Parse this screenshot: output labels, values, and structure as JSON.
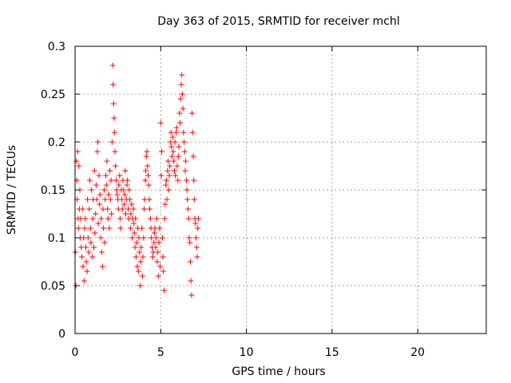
{
  "chart_data": {
    "type": "scatter",
    "title": "Day 363 of 2015, SRMTID for receiver mchl",
    "xlabel": "GPS time / hours",
    "ylabel": "SRMTID / TECUs",
    "xlim": [
      0,
      24
    ],
    "ylim": [
      0,
      0.3
    ],
    "xticks": [
      0,
      5,
      10,
      15,
      20
    ],
    "xtick_labels": [
      "0",
      "5",
      "10",
      "15",
      "20"
    ],
    "yticks": [
      0,
      0.05,
      0.1,
      0.15,
      0.2,
      0.25,
      0.3
    ],
    "ytick_labels": [
      "0",
      "0.05",
      "0.1",
      "0.15",
      "0.2",
      "0.25",
      "0.3"
    ],
    "grid": true,
    "marker": "+",
    "color": "#ff0000",
    "series": [
      {
        "name": "SRMTID",
        "points": [
          [
            0.02,
            0.085
          ],
          [
            0.05,
            0.05
          ],
          [
            0.08,
            0.18
          ],
          [
            0.1,
            0.16
          ],
          [
            0.12,
            0.14
          ],
          [
            0.15,
            0.19
          ],
          [
            0.18,
            0.12
          ],
          [
            0.2,
            0.11
          ],
          [
            0.22,
            0.175
          ],
          [
            0.25,
            0.13
          ],
          [
            0.28,
            0.15
          ],
          [
            0.3,
            0.1
          ],
          [
            0.33,
            0.12
          ],
          [
            0.36,
            0.09
          ],
          [
            0.4,
            0.08
          ],
          [
            0.43,
            0.13
          ],
          [
            0.46,
            0.07
          ],
          [
            0.5,
            0.1
          ],
          [
            0.53,
            0.055
          ],
          [
            0.56,
            0.11
          ],
          [
            0.6,
            0.12
          ],
          [
            0.63,
            0.09
          ],
          [
            0.66,
            0.075
          ],
          [
            0.7,
            0.065
          ],
          [
            0.73,
            0.14
          ],
          [
            0.76,
            0.1
          ],
          [
            0.8,
            0.085
          ],
          [
            0.83,
            0.13
          ],
          [
            0.86,
            0.16
          ],
          [
            0.9,
            0.11
          ],
          [
            0.93,
            0.095
          ],
          [
            0.96,
            0.15
          ],
          [
            1.0,
            0.08
          ],
          [
            1.03,
            0.12
          ],
          [
            1.06,
            0.14
          ],
          [
            1.1,
            0.09
          ],
          [
            1.13,
            0.17
          ],
          [
            1.16,
            0.105
          ],
          [
            1.2,
            0.125
          ],
          [
            1.23,
            0.155
          ],
          [
            1.26,
            0.14
          ],
          [
            1.3,
            0.19
          ],
          [
            1.33,
            0.2
          ],
          [
            1.36,
            0.115
          ],
          [
            1.4,
            0.165
          ],
          [
            1.43,
            0.135
          ],
          [
            1.46,
            0.145
          ],
          [
            1.5,
            0.1
          ],
          [
            1.53,
            0.12
          ],
          [
            1.56,
            0.085
          ],
          [
            1.6,
            0.07
          ],
          [
            1.63,
            0.13
          ],
          [
            1.66,
            0.11
          ],
          [
            1.7,
            0.15
          ],
          [
            1.73,
            0.095
          ],
          [
            1.76,
            0.14
          ],
          [
            1.8,
            0.165
          ],
          [
            1.83,
            0.155
          ],
          [
            1.86,
            0.18
          ],
          [
            1.9,
            0.13
          ],
          [
            1.93,
            0.12
          ],
          [
            1.96,
            0.145
          ],
          [
            2.0,
            0.11
          ],
          [
            2.03,
            0.17
          ],
          [
            2.06,
            0.14
          ],
          [
            2.1,
            0.16
          ],
          [
            2.13,
            0.125
          ],
          [
            2.16,
            0.2
          ],
          [
            2.2,
            0.28
          ],
          [
            2.22,
            0.26
          ],
          [
            2.25,
            0.24
          ],
          [
            2.28,
            0.225
          ],
          [
            2.3,
            0.21
          ],
          [
            2.33,
            0.19
          ],
          [
            2.36,
            0.175
          ],
          [
            2.4,
            0.16
          ],
          [
            2.43,
            0.15
          ],
          [
            2.46,
            0.145
          ],
          [
            2.5,
            0.14
          ],
          [
            2.53,
            0.13
          ],
          [
            2.56,
            0.155
          ],
          [
            2.6,
            0.165
          ],
          [
            2.63,
            0.12
          ],
          [
            2.66,
            0.11
          ],
          [
            2.7,
            0.15
          ],
          [
            2.73,
            0.14
          ],
          [
            2.76,
            0.13
          ],
          [
            2.8,
            0.16
          ],
          [
            2.83,
            0.15
          ],
          [
            2.86,
            0.135
          ],
          [
            2.9,
            0.145
          ],
          [
            2.93,
            0.17
          ],
          [
            2.96,
            0.125
          ],
          [
            3.0,
            0.14
          ],
          [
            3.03,
            0.155
          ],
          [
            3.06,
            0.16
          ],
          [
            3.1,
            0.13
          ],
          [
            3.13,
            0.12
          ],
          [
            3.16,
            0.15
          ],
          [
            3.2,
            0.14
          ],
          [
            3.23,
            0.11
          ],
          [
            3.26,
            0.125
          ],
          [
            3.3,
            0.135
          ],
          [
            3.33,
            0.1
          ],
          [
            3.36,
            0.12
          ],
          [
            3.4,
            0.13
          ],
          [
            3.43,
            0.115
          ],
          [
            3.46,
            0.105
          ],
          [
            3.5,
            0.09
          ],
          [
            3.53,
            0.12
          ],
          [
            3.56,
            0.08
          ],
          [
            3.6,
            0.095
          ],
          [
            3.63,
            0.07
          ],
          [
            3.66,
            0.11
          ],
          [
            3.7,
            0.065
          ],
          [
            3.73,
            0.1
          ],
          [
            3.76,
            0.085
          ],
          [
            3.8,
            0.05
          ],
          [
            3.83,
            0.075
          ],
          [
            3.86,
            0.09
          ],
          [
            3.9,
            0.11
          ],
          [
            3.93,
            0.06
          ],
          [
            3.96,
            0.08
          ],
          [
            4.0,
            0.1
          ],
          [
            4.03,
            0.13
          ],
          [
            4.06,
            0.14
          ],
          [
            4.1,
            0.16
          ],
          [
            4.13,
            0.17
          ],
          [
            4.16,
            0.185
          ],
          [
            4.2,
            0.19
          ],
          [
            4.23,
            0.175
          ],
          [
            4.26,
            0.165
          ],
          [
            4.3,
            0.155
          ],
          [
            4.33,
            0.14
          ],
          [
            4.36,
            0.13
          ],
          [
            4.4,
            0.12
          ],
          [
            4.43,
            0.11
          ],
          [
            4.46,
            0.1
          ],
          [
            4.5,
            0.09
          ],
          [
            4.53,
            0.08
          ],
          [
            4.56,
            0.085
          ],
          [
            4.6,
            0.095
          ],
          [
            4.63,
            0.105
          ],
          [
            4.66,
            0.11
          ],
          [
            4.7,
            0.09
          ],
          [
            4.73,
            0.1
          ],
          [
            4.76,
            0.12
          ],
          [
            4.8,
            0.075
          ],
          [
            4.83,
            0.085
          ],
          [
            4.86,
            0.06
          ],
          [
            4.9,
            0.095
          ],
          [
            4.93,
            0.11
          ],
          [
            4.96,
            0.07
          ],
          [
            5.0,
            0.22
          ],
          [
            5.03,
            0.165
          ],
          [
            5.06,
            0.19
          ],
          [
            5.1,
            0.1
          ],
          [
            5.13,
            0.08
          ],
          [
            5.16,
            0.065
          ],
          [
            5.2,
            0.045
          ],
          [
            5.23,
            0.12
          ],
          [
            5.26,
            0.135
          ],
          [
            5.3,
            0.155
          ],
          [
            5.33,
            0.16
          ],
          [
            5.36,
            0.14
          ],
          [
            5.4,
            0.17
          ],
          [
            5.43,
            0.18
          ],
          [
            5.46,
            0.15
          ],
          [
            5.5,
            0.165
          ],
          [
            5.53,
            0.175
          ],
          [
            5.56,
            0.2
          ],
          [
            5.6,
            0.21
          ],
          [
            5.63,
            0.195
          ],
          [
            5.66,
            0.185
          ],
          [
            5.7,
            0.205
          ],
          [
            5.73,
            0.19
          ],
          [
            5.76,
            0.18
          ],
          [
            5.8,
            0.17
          ],
          [
            5.83,
            0.2
          ],
          [
            5.86,
            0.165
          ],
          [
            5.9,
            0.21
          ],
          [
            5.93,
            0.215
          ],
          [
            5.96,
            0.175
          ],
          [
            6.0,
            0.16
          ],
          [
            6.03,
            0.185
          ],
          [
            6.06,
            0.195
          ],
          [
            6.1,
            0.23
          ],
          [
            6.13,
            0.22
          ],
          [
            6.16,
            0.245
          ],
          [
            6.2,
            0.26
          ],
          [
            6.23,
            0.27
          ],
          [
            6.26,
            0.25
          ],
          [
            6.3,
            0.235
          ],
          [
            6.33,
            0.21
          ],
          [
            6.36,
            0.2
          ],
          [
            6.4,
            0.19
          ],
          [
            6.43,
            0.17
          ],
          [
            6.46,
            0.18
          ],
          [
            6.5,
            0.16
          ],
          [
            6.53,
            0.15
          ],
          [
            6.56,
            0.14
          ],
          [
            6.6,
            0.13
          ],
          [
            6.63,
            0.12
          ],
          [
            6.66,
            0.1
          ],
          [
            6.7,
            0.095
          ],
          [
            6.73,
            0.075
          ],
          [
            6.76,
            0.055
          ],
          [
            6.8,
            0.04
          ],
          [
            6.83,
            0.23
          ],
          [
            6.86,
            0.21
          ],
          [
            6.9,
            0.185
          ],
          [
            6.93,
            0.16
          ],
          [
            6.96,
            0.14
          ],
          [
            7.0,
            0.12
          ],
          [
            7.03,
            0.115
          ],
          [
            7.06,
            0.1
          ],
          [
            7.1,
            0.09
          ],
          [
            7.13,
            0.08
          ],
          [
            7.16,
            0.11
          ],
          [
            7.2,
            0.12
          ]
        ]
      }
    ]
  }
}
